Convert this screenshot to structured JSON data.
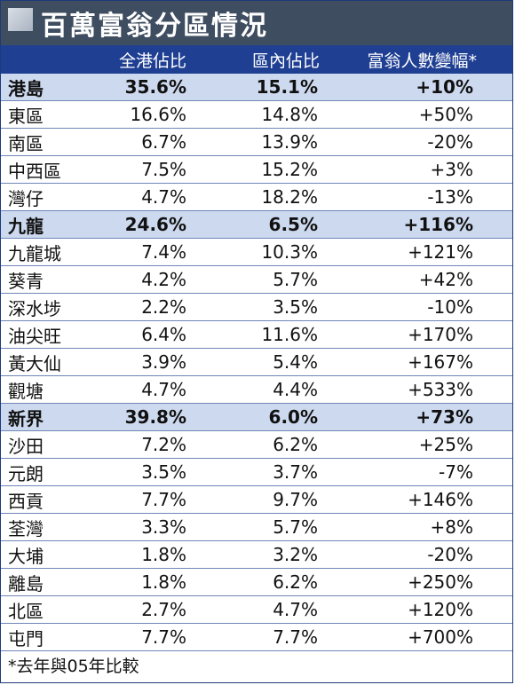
{
  "title": "百萬富翁分區情況",
  "headers": [
    "",
    "全港佔比",
    "區內佔比",
    "富翁人數變幅*"
  ],
  "footnote": "*去年與05年比較",
  "colors": {
    "title_bg": "#3f4d61",
    "header_bg": "#1f3f93",
    "region_row_bg": "#cdd9ee"
  },
  "chart_data": {
    "type": "table",
    "columns": [
      "",
      "全港佔比",
      "區內佔比",
      "富翁人數變幅*"
    ],
    "rows": [
      {
        "name": "港島",
        "share_hk": "35.6%",
        "share_region": "15.1%",
        "change": "+10%",
        "region": true
      },
      {
        "name": "東區",
        "share_hk": "16.6%",
        "share_region": "14.8%",
        "change": "+50%",
        "region": false
      },
      {
        "name": "南區",
        "share_hk": "6.7%",
        "share_region": "13.9%",
        "change": "-20%",
        "region": false
      },
      {
        "name": "中西區",
        "share_hk": "7.5%",
        "share_region": "15.2%",
        "change": "+3%",
        "region": false
      },
      {
        "name": "灣仔",
        "share_hk": "4.7%",
        "share_region": "18.2%",
        "change": "-13%",
        "region": false
      },
      {
        "name": "九龍",
        "share_hk": "24.6%",
        "share_region": "6.5%",
        "change": "+116%",
        "region": true
      },
      {
        "name": "九龍城",
        "share_hk": "7.4%",
        "share_region": "10.3%",
        "change": "+121%",
        "region": false
      },
      {
        "name": "葵青",
        "share_hk": "4.2%",
        "share_region": "5.7%",
        "change": "+42%",
        "region": false
      },
      {
        "name": "深水埗",
        "share_hk": "2.2%",
        "share_region": "3.5%",
        "change": "-10%",
        "region": false
      },
      {
        "name": "油尖旺",
        "share_hk": "6.4%",
        "share_region": "11.6%",
        "change": "+170%",
        "region": false
      },
      {
        "name": "黃大仙",
        "share_hk": "3.9%",
        "share_region": "5.4%",
        "change": "+167%",
        "region": false
      },
      {
        "name": "觀塘",
        "share_hk": "4.7%",
        "share_region": "4.4%",
        "change": "+533%",
        "region": false
      },
      {
        "name": "新界",
        "share_hk": "39.8%",
        "share_region": "6.0%",
        "change": "+73%",
        "region": true
      },
      {
        "name": "沙田",
        "share_hk": "7.2%",
        "share_region": "6.2%",
        "change": "+25%",
        "region": false
      },
      {
        "name": "元朗",
        "share_hk": "3.5%",
        "share_region": "3.7%",
        "change": "-7%",
        "region": false
      },
      {
        "name": "西貢",
        "share_hk": "7.7%",
        "share_region": "9.7%",
        "change": "+146%",
        "region": false
      },
      {
        "name": "荃灣",
        "share_hk": "3.3%",
        "share_region": "5.7%",
        "change": "+8%",
        "region": false
      },
      {
        "name": "大埔",
        "share_hk": "1.8%",
        "share_region": "3.2%",
        "change": "-20%",
        "region": false
      },
      {
        "name": "離島",
        "share_hk": "1.8%",
        "share_region": "6.2%",
        "change": "+250%",
        "region": false
      },
      {
        "name": "北區",
        "share_hk": "2.7%",
        "share_region": "4.7%",
        "change": "+120%",
        "region": false
      },
      {
        "name": "屯門",
        "share_hk": "7.7%",
        "share_region": "7.7%",
        "change": "+700%",
        "region": false
      }
    ]
  }
}
